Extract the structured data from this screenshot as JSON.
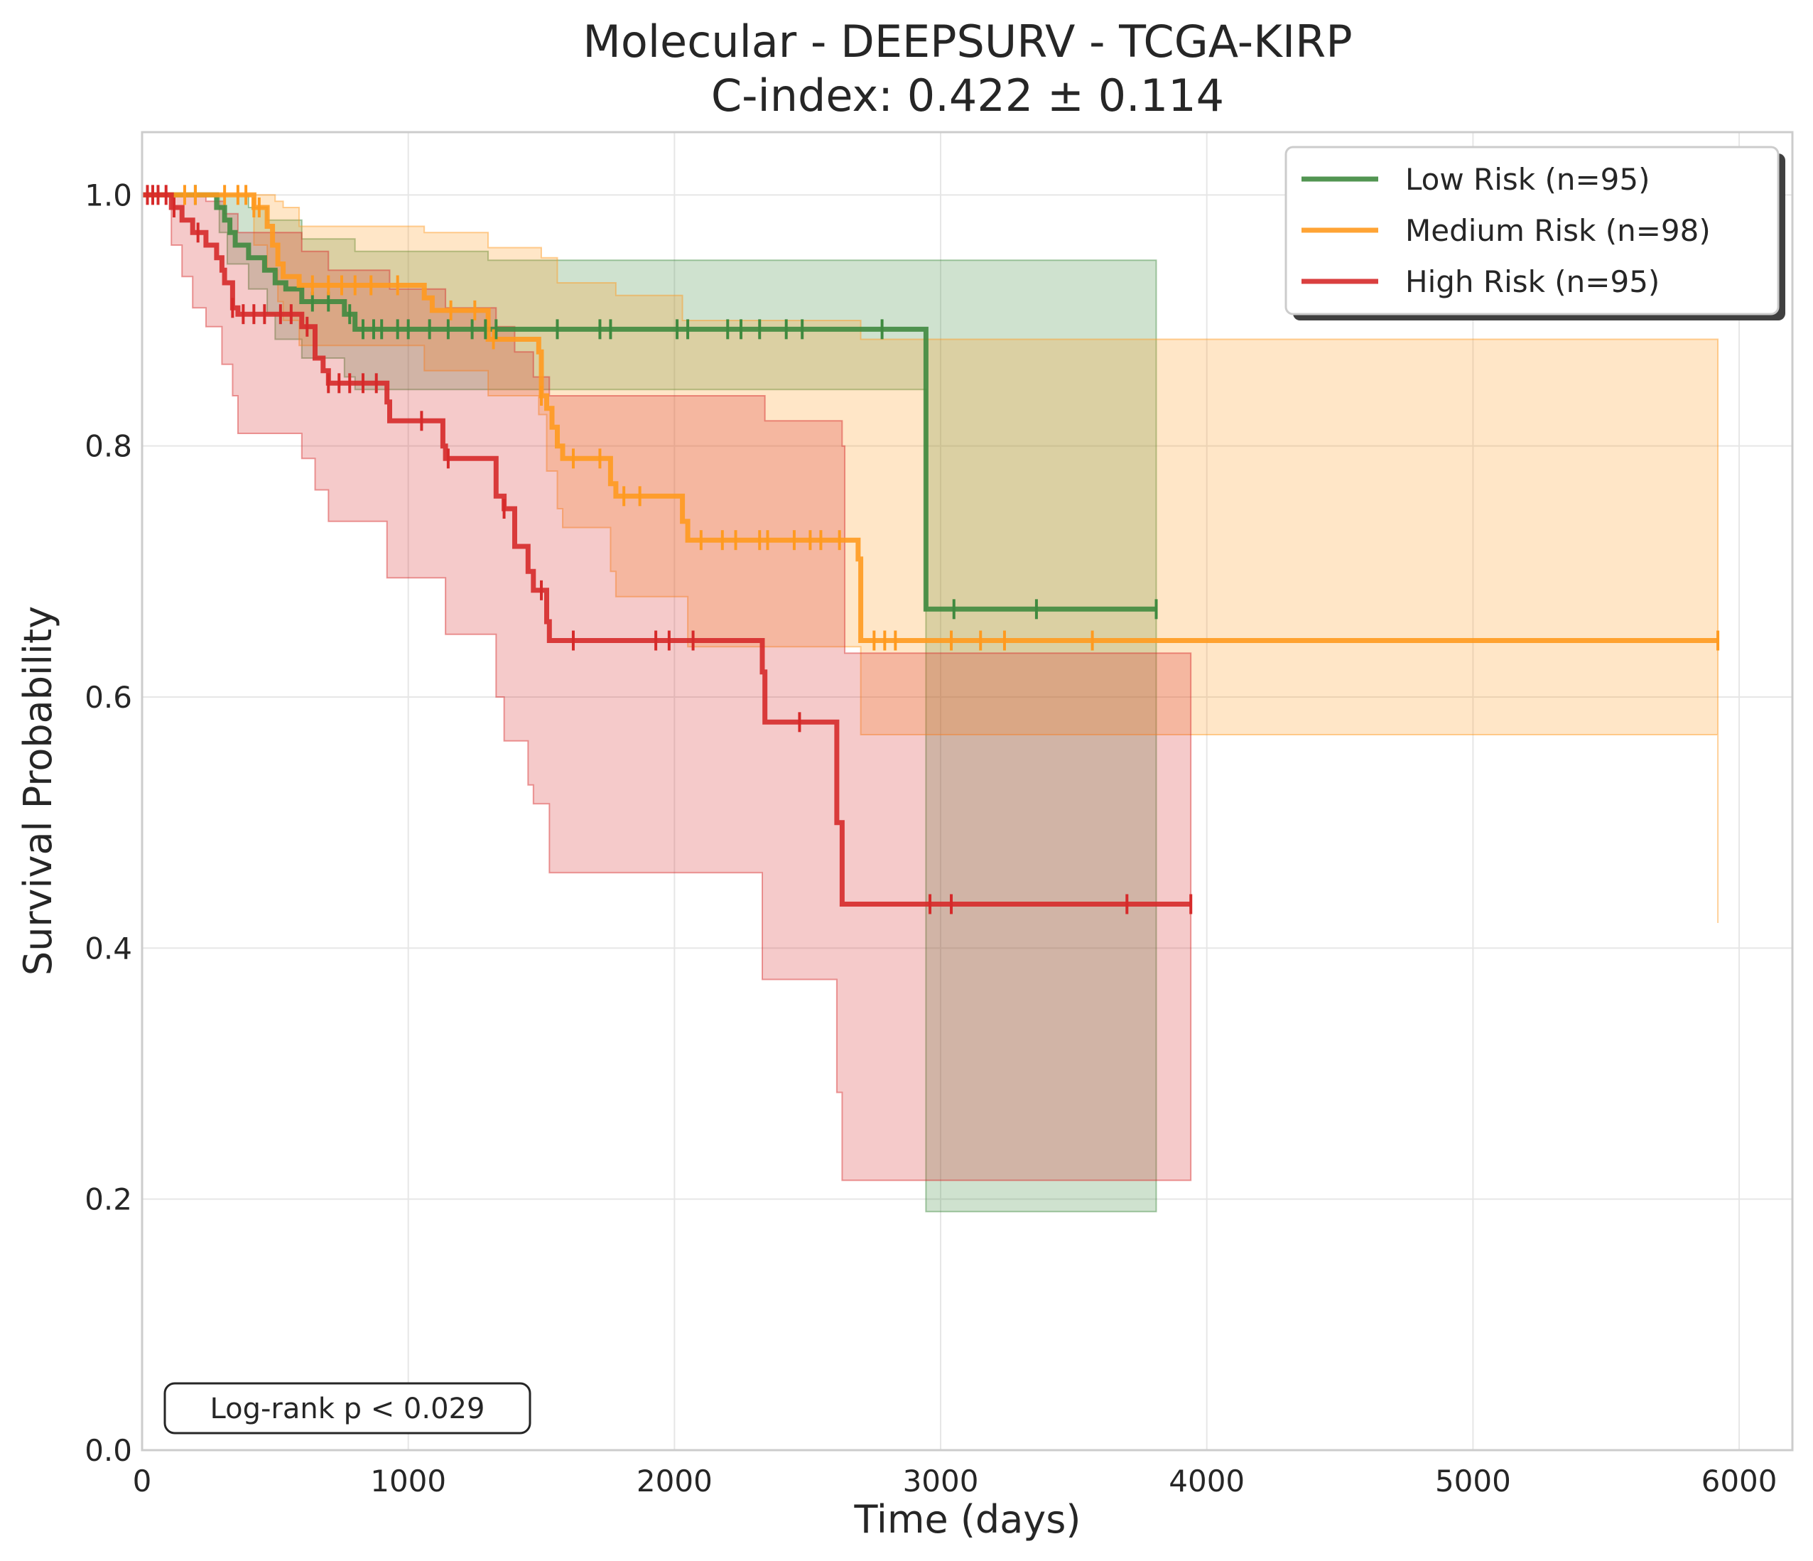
{
  "chart_data": {
    "type": "line",
    "subtype": "kaplan-meier step survival curves with confidence bands and censor ticks",
    "title": "Molecular - DEEPSURV - TCGA-KIRP",
    "subtitle": "C-index: 0.422 ± 0.114",
    "xlabel": "Time (days)",
    "ylabel": "Survival Probability",
    "xlim": [
      0,
      6200
    ],
    "ylim": [
      0,
      1.05
    ],
    "xticks": [
      0,
      1000,
      2000,
      3000,
      4000,
      5000,
      6000
    ],
    "xtick_labels": [
      "0",
      "1000",
      "2000",
      "3000",
      "4000",
      "5000",
      "6000"
    ],
    "yticks": [
      0.0,
      0.2,
      0.4,
      0.6,
      0.8,
      1.0
    ],
    "ytick_labels": [
      "0.0",
      "0.2",
      "0.4",
      "0.6",
      "0.8",
      "1.0"
    ],
    "grid": true,
    "legend_position": "top-right",
    "annotation": "Log-rank p < 0.029",
    "series": [
      {
        "name": "Low Risk (n=95)",
        "color": "#3f8a3f",
        "steps": [
          [
            0,
            1.0
          ],
          [
            280,
            0.99
          ],
          [
            310,
            0.98
          ],
          [
            330,
            0.97
          ],
          [
            350,
            0.96
          ],
          [
            400,
            0.95
          ],
          [
            460,
            0.94
          ],
          [
            500,
            0.93
          ],
          [
            540,
            0.925
          ],
          [
            600,
            0.915
          ],
          [
            760,
            0.905
          ],
          [
            800,
            0.893
          ],
          [
            2940,
            0.893
          ],
          [
            2945,
            0.67
          ],
          [
            3810,
            0.67
          ]
        ],
        "ci_upper": [
          [
            0,
            1.0
          ],
          [
            290,
            1.0
          ],
          [
            320,
            1.0
          ],
          [
            400,
            0.99
          ],
          [
            470,
            0.98
          ],
          [
            600,
            0.965
          ],
          [
            800,
            0.955
          ],
          [
            1300,
            0.948
          ],
          [
            2945,
            0.948
          ],
          [
            3810,
            0.908
          ]
        ],
        "ci_lower": [
          [
            0,
            1.0
          ],
          [
            290,
            0.97
          ],
          [
            320,
            0.945
          ],
          [
            400,
            0.925
          ],
          [
            470,
            0.905
          ],
          [
            500,
            0.885
          ],
          [
            600,
            0.87
          ],
          [
            760,
            0.855
          ],
          [
            800,
            0.845
          ],
          [
            2945,
            0.19
          ],
          [
            3810,
            0.19
          ]
        ],
        "censored": [
          200,
          640,
          700,
          780,
          830,
          870,
          900,
          960,
          1000,
          1080,
          1150,
          1240,
          1290,
          1330,
          1560,
          1720,
          1760,
          2010,
          2050,
          2200,
          2250,
          2320,
          2420,
          2480,
          2780,
          3050,
          3360,
          3810
        ]
      },
      {
        "name": "Medium Risk (n=98)",
        "color": "#ff9a1f",
        "steps": [
          [
            0,
            1.0
          ],
          [
            420,
            0.99
          ],
          [
            470,
            0.975
          ],
          [
            490,
            0.96
          ],
          [
            510,
            0.945
          ],
          [
            530,
            0.935
          ],
          [
            590,
            0.928
          ],
          [
            1060,
            0.918
          ],
          [
            1090,
            0.908
          ],
          [
            1300,
            0.885
          ],
          [
            1490,
            0.875
          ],
          [
            1500,
            0.84
          ],
          [
            1520,
            0.83
          ],
          [
            1540,
            0.815
          ],
          [
            1560,
            0.8
          ],
          [
            1580,
            0.79
          ],
          [
            1760,
            0.77
          ],
          [
            1780,
            0.76
          ],
          [
            2030,
            0.74
          ],
          [
            2050,
            0.725
          ],
          [
            2690,
            0.71
          ],
          [
            2700,
            0.645
          ],
          [
            5920,
            0.645
          ]
        ],
        "ci_upper": [
          [
            0,
            1.0
          ],
          [
            420,
            1.0
          ],
          [
            470,
            1.0
          ],
          [
            500,
            0.995
          ],
          [
            530,
            0.99
          ],
          [
            590,
            0.975
          ],
          [
            1060,
            0.97
          ],
          [
            1300,
            0.958
          ],
          [
            1500,
            0.95
          ],
          [
            1560,
            0.93
          ],
          [
            1780,
            0.92
          ],
          [
            2030,
            0.9
          ],
          [
            2700,
            0.885
          ],
          [
            5920,
            0.8
          ]
        ],
        "ci_lower": [
          [
            0,
            1.0
          ],
          [
            420,
            0.96
          ],
          [
            470,
            0.94
          ],
          [
            510,
            0.915
          ],
          [
            530,
            0.9
          ],
          [
            590,
            0.88
          ],
          [
            1060,
            0.86
          ],
          [
            1300,
            0.84
          ],
          [
            1490,
            0.825
          ],
          [
            1520,
            0.78
          ],
          [
            1560,
            0.75
          ],
          [
            1580,
            0.735
          ],
          [
            1760,
            0.7
          ],
          [
            1780,
            0.68
          ],
          [
            2050,
            0.64
          ],
          [
            2700,
            0.57
          ],
          [
            5920,
            0.42
          ]
        ],
        "censored": [
          160,
          200,
          310,
          360,
          390,
          420,
          440,
          640,
          700,
          750,
          800,
          860,
          960,
          1160,
          1250,
          1320,
          1500,
          1620,
          1720,
          1810,
          1870,
          2100,
          2180,
          2230,
          2320,
          2350,
          2450,
          2510,
          2550,
          2620,
          2750,
          2790,
          2830,
          3040,
          3150,
          3240,
          3570,
          5920
        ]
      },
      {
        "name": "High Risk (n=95)",
        "color": "#d62a2a",
        "steps": [
          [
            0,
            1.0
          ],
          [
            110,
            0.99
          ],
          [
            150,
            0.98
          ],
          [
            190,
            0.97
          ],
          [
            240,
            0.96
          ],
          [
            280,
            0.95
          ],
          [
            300,
            0.94
          ],
          [
            310,
            0.93
          ],
          [
            340,
            0.91
          ],
          [
            360,
            0.905
          ],
          [
            600,
            0.895
          ],
          [
            650,
            0.87
          ],
          [
            680,
            0.86
          ],
          [
            700,
            0.85
          ],
          [
            920,
            0.835
          ],
          [
            930,
            0.82
          ],
          [
            1130,
            0.8
          ],
          [
            1140,
            0.79
          ],
          [
            1330,
            0.76
          ],
          [
            1360,
            0.75
          ],
          [
            1400,
            0.72
          ],
          [
            1450,
            0.7
          ],
          [
            1470,
            0.685
          ],
          [
            1520,
            0.66
          ],
          [
            1530,
            0.645
          ],
          [
            2330,
            0.62
          ],
          [
            2340,
            0.58
          ],
          [
            2610,
            0.5
          ],
          [
            2630,
            0.435
          ],
          [
            3940,
            0.435
          ]
        ],
        "ci_upper": [
          [
            0,
            1.0
          ],
          [
            150,
            1.0
          ],
          [
            240,
            0.995
          ],
          [
            310,
            0.985
          ],
          [
            360,
            0.97
          ],
          [
            600,
            0.955
          ],
          [
            700,
            0.94
          ],
          [
            930,
            0.925
          ],
          [
            1140,
            0.91
          ],
          [
            1330,
            0.895
          ],
          [
            1400,
            0.875
          ],
          [
            1470,
            0.855
          ],
          [
            1530,
            0.84
          ],
          [
            2340,
            0.82
          ],
          [
            2630,
            0.8
          ],
          [
            2640,
            0.635
          ],
          [
            3940,
            0.635
          ]
        ],
        "ci_lower": [
          [
            0,
            1.0
          ],
          [
            110,
            0.96
          ],
          [
            150,
            0.935
          ],
          [
            190,
            0.91
          ],
          [
            240,
            0.895
          ],
          [
            300,
            0.865
          ],
          [
            340,
            0.84
          ],
          [
            360,
            0.81
          ],
          [
            600,
            0.79
          ],
          [
            650,
            0.765
          ],
          [
            700,
            0.74
          ],
          [
            920,
            0.695
          ],
          [
            1140,
            0.65
          ],
          [
            1330,
            0.6
          ],
          [
            1360,
            0.565
          ],
          [
            1450,
            0.53
          ],
          [
            1470,
            0.515
          ],
          [
            1530,
            0.46
          ],
          [
            2330,
            0.375
          ],
          [
            2610,
            0.285
          ],
          [
            2630,
            0.215
          ],
          [
            3940,
            0.215
          ]
        ],
        "censored": [
          20,
          40,
          60,
          90,
          120,
          210,
          340,
          380,
          420,
          460,
          520,
          560,
          620,
          700,
          740,
          780,
          830,
          880,
          1050,
          1150,
          1360,
          1500,
          1620,
          1930,
          1980,
          2070,
          2470,
          2960,
          3040,
          3700,
          3940
        ]
      }
    ]
  }
}
